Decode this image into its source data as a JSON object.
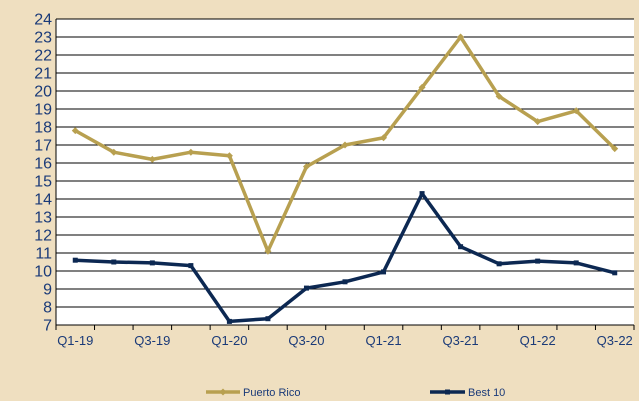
{
  "chart_data": {
    "type": "line",
    "title": "",
    "xlabel": "",
    "ylabel": "",
    "categories": [
      "Q1-19",
      "Q2-19",
      "Q3-19",
      "Q4-19",
      "Q1-20",
      "Q2-20",
      "Q3-20",
      "Q4-20",
      "Q1-21",
      "Q2-21",
      "Q3-21",
      "Q4-21",
      "Q1-22",
      "Q2-22",
      "Q3-22"
    ],
    "x_tick_labels": [
      "Q1-19",
      "",
      "Q3-19",
      "",
      "Q1-20",
      "",
      "Q3-20",
      "",
      "Q1-21",
      "",
      "Q3-21",
      "",
      "Q1-22",
      "",
      "Q3-22"
    ],
    "y_ticks": [
      "7",
      "8",
      "9",
      "10",
      "11",
      "12",
      "13",
      "14",
      "15",
      "16",
      "17",
      "18",
      "19",
      "20",
      "21",
      "22",
      "23",
      "24"
    ],
    "ylim": [
      7,
      24
    ],
    "grid": "horizontal",
    "legend_position": "bottom",
    "series": [
      {
        "name": "Puerto Rico",
        "color": "#b8a050",
        "marker": "diamond",
        "values": [
          17.8,
          16.6,
          16.2,
          16.6,
          16.4,
          11.1,
          15.8,
          17.0,
          17.4,
          20.2,
          23.0,
          19.7,
          18.3,
          18.9,
          16.8
        ]
      },
      {
        "name": "Best 10",
        "color": "#0c2852",
        "marker": "square",
        "values": [
          10.6,
          10.5,
          10.45,
          10.3,
          7.2,
          7.35,
          9.05,
          9.4,
          9.95,
          14.3,
          11.35,
          10.4,
          10.55,
          10.45,
          9.9
        ]
      }
    ]
  }
}
